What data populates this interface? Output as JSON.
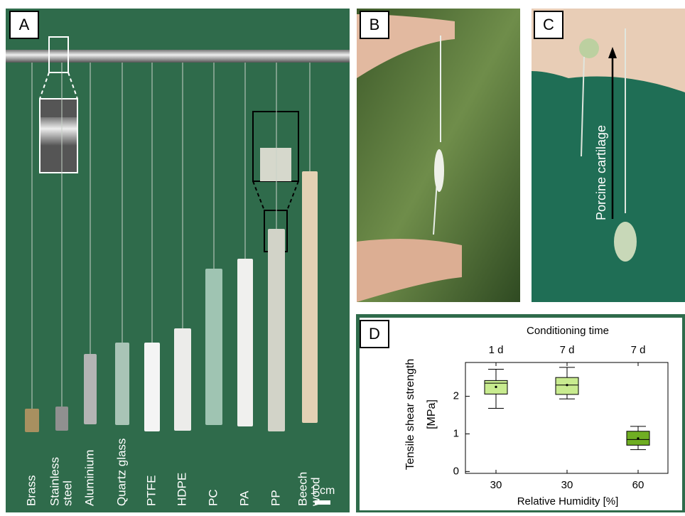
{
  "panel_labels": [
    "A",
    "B",
    "C",
    "D"
  ],
  "panel_a": {
    "materials": [
      [
        "Brass"
      ],
      [
        "Stainless",
        "steel"
      ],
      [
        "Aluminium"
      ],
      [
        "Quartz glass"
      ],
      [
        "PTFE"
      ],
      [
        "HDPE"
      ],
      [
        "PC"
      ],
      [
        "PA"
      ],
      [
        "PP"
      ],
      [
        "Beech",
        "wood"
      ]
    ],
    "scale_bar": "1 cm"
  },
  "panel_c": {
    "annotation": "Porcine cartilage"
  },
  "chart_data": {
    "type": "box",
    "top_axis_title": "Conditioning time",
    "top_categories": [
      "1 d",
      "7 d",
      "7 d"
    ],
    "y_label": [
      "Tensile shear strength",
      "[MPa]"
    ],
    "x_label": "Relative Humidity [%]",
    "categories": [
      "30",
      "30",
      "60"
    ],
    "colors": [
      "#c8eb8f",
      "#c8eb8f",
      "#6fae22"
    ],
    "whislo": [
      1.68,
      1.93,
      0.58
    ],
    "q1": [
      2.06,
      2.05,
      0.7
    ],
    "median": [
      2.35,
      2.3,
      0.85
    ],
    "mean": [
      2.25,
      2.3,
      0.88
    ],
    "q3": [
      2.42,
      2.5,
      1.07
    ],
    "whishi": [
      2.72,
      2.77,
      1.2
    ],
    "ylim": [
      -0.05,
      2.9
    ],
    "yticks": [
      0,
      1,
      2
    ]
  }
}
